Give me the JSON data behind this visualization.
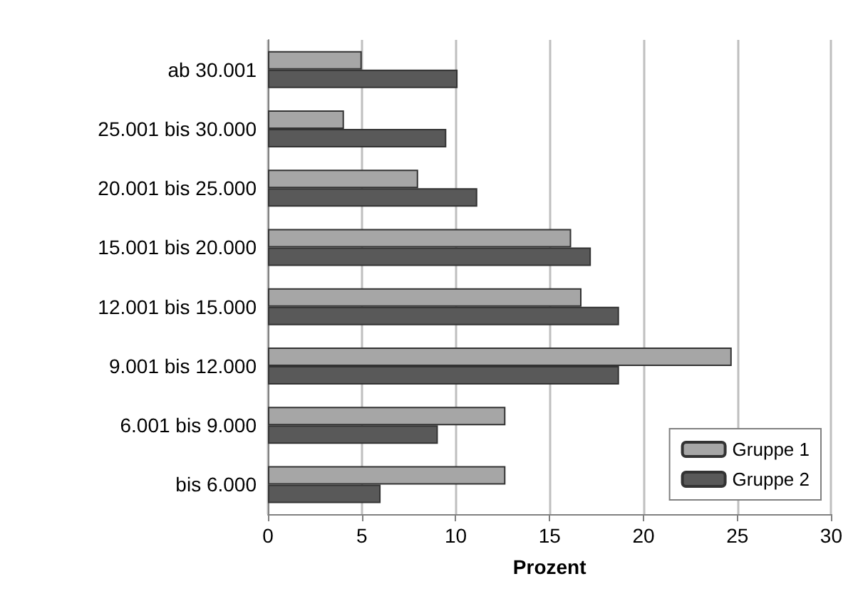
{
  "chart_data": {
    "type": "bar",
    "orientation": "horizontal",
    "xlabel": "Prozent",
    "categories": [
      "ab 30.001",
      "25.001 bis 30.000",
      "20.001 bis 25.000",
      "15.001 bis 20.000",
      "12.001 bis 15.000",
      "9.001 bis 12.000",
      "6.001 bis 9.000",
      "bis 6.000"
    ],
    "series": [
      {
        "name": "Gruppe 1",
        "color": "#a6a6a6",
        "values": [
          5.0,
          4.05,
          8.0,
          16.15,
          16.7,
          24.7,
          12.65,
          12.65
        ]
      },
      {
        "name": "Gruppe 2",
        "color": "#595959",
        "values": [
          10.1,
          9.5,
          11.15,
          17.2,
          18.7,
          18.7,
          9.05,
          6.0
        ]
      }
    ],
    "xlim": [
      0,
      30
    ],
    "xticks": [
      0,
      5,
      10,
      15,
      20,
      25,
      30
    ],
    "grid": "x",
    "legend": "bottom right"
  }
}
